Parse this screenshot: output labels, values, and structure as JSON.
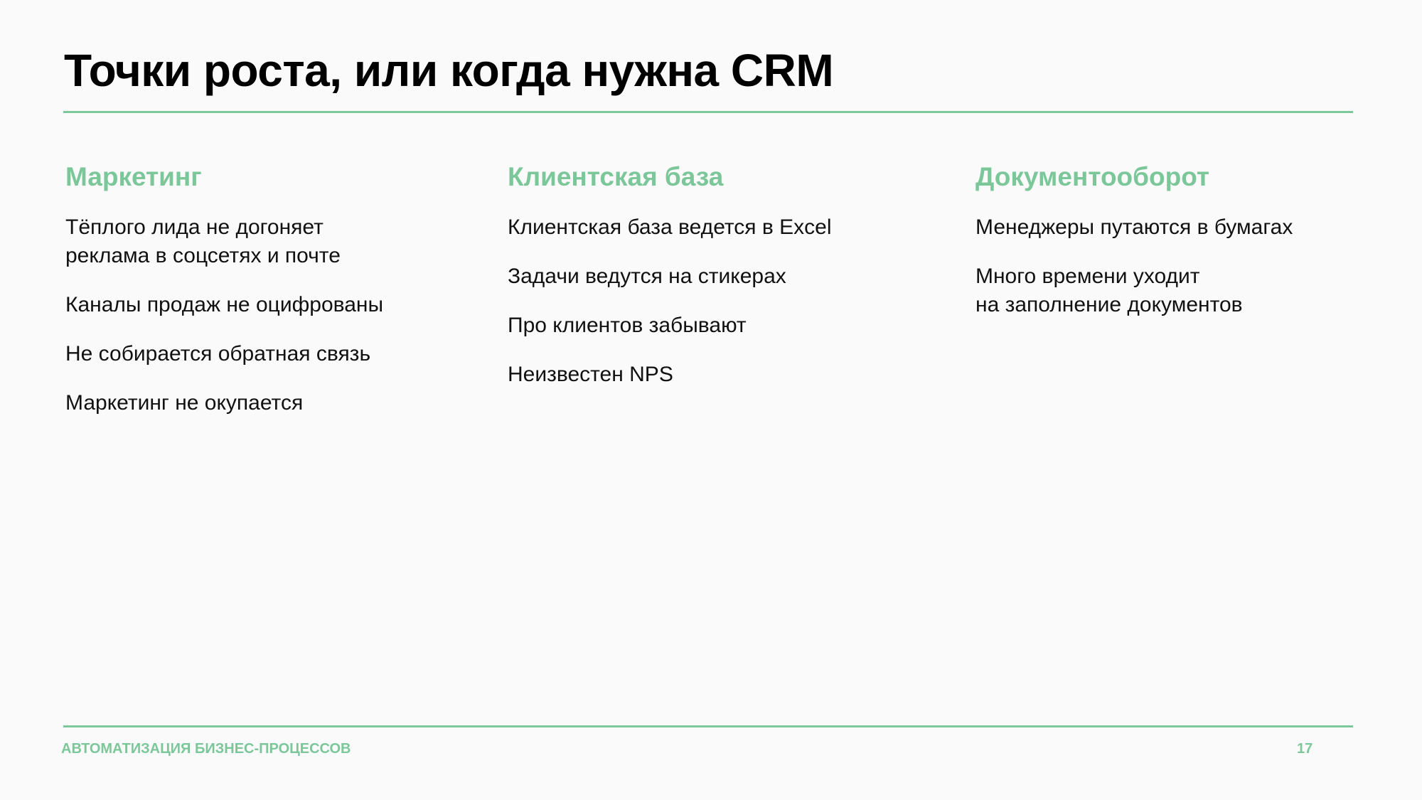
{
  "slide": {
    "title": "Точки роста, или когда нужна CRM",
    "accent_color": "#7cc79a",
    "columns": [
      {
        "heading": "Маркетинг",
        "items": [
          "Тёплого лида не догоняет\nреклама в соцсетях и почте",
          "Каналы продаж не оцифрованы",
          "Не собирается обратная связь",
          "Маркетинг не окупается"
        ]
      },
      {
        "heading": "Клиентская база",
        "items": [
          "Клиентская база ведется в Excel",
          "Задачи ведутся на стикерах",
          "Про клиентов забывают",
          "Неизвестен NPS"
        ]
      },
      {
        "heading": "Документооборот",
        "items": [
          "Менеджеры путаются в бумагах",
          "Много времени уходит\nна заполнение документов"
        ]
      }
    ]
  },
  "footer": {
    "label": "АВТОМАТИЗАЦИЯ БИЗНЕС-ПРОЦЕССОВ",
    "page_number": "17"
  }
}
